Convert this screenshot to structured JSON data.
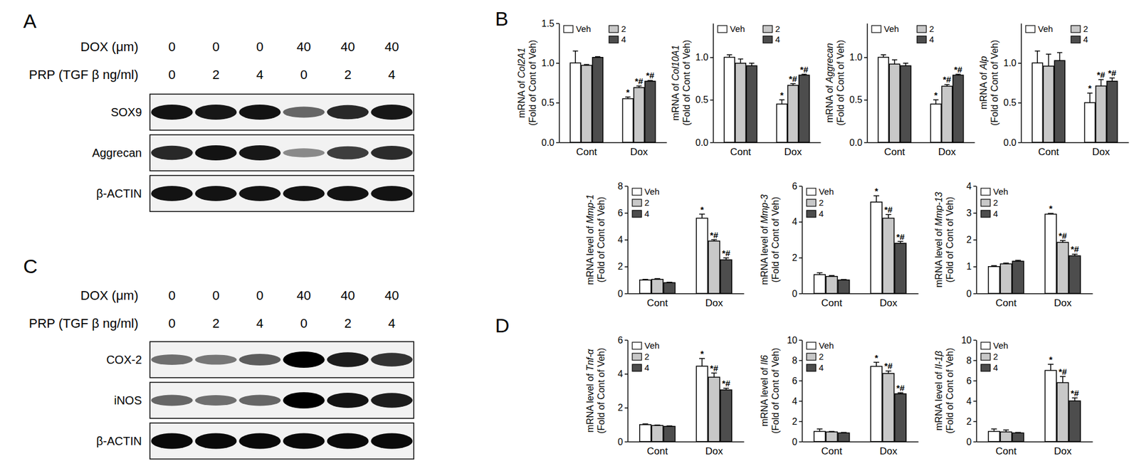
{
  "panel_labels": [
    "A",
    "B",
    "C",
    "D"
  ],
  "blots": [
    {
      "header": [
        {
          "name": "DOX (μm)",
          "values": [
            0,
            0,
            0,
            40,
            40,
            40
          ]
        },
        {
          "name": "PRP (TGF β ng/ml)",
          "values": [
            0,
            2,
            4,
            0,
            2,
            4
          ]
        }
      ],
      "rows": [
        {
          "name": "SOX9",
          "levels": [
            0.9,
            0.88,
            0.9,
            0.5,
            0.8,
            0.88
          ]
        },
        {
          "name": "Aggrecan",
          "levels": [
            0.8,
            0.9,
            0.88,
            0.3,
            0.7,
            0.78
          ]
        },
        {
          "name": "β-ACTIN",
          "levels": [
            0.9,
            0.9,
            0.9,
            0.9,
            0.9,
            0.9
          ]
        }
      ]
    },
    {
      "header": [
        {
          "name": "DOX (μm)",
          "values": [
            0,
            0,
            0,
            40,
            40,
            40
          ]
        },
        {
          "name": "PRP (TGF β ng/ml)",
          "values": [
            0,
            2,
            4,
            0,
            2,
            4
          ]
        }
      ],
      "rows": [
        {
          "name": "COX-2",
          "levels": [
            0.45,
            0.4,
            0.55,
            1.0,
            0.85,
            0.75
          ]
        },
        {
          "name": "iNOS",
          "levels": [
            0.5,
            0.45,
            0.5,
            1.0,
            0.9,
            0.85
          ]
        },
        {
          "name": "β-ACTIN",
          "levels": [
            0.95,
            0.95,
            0.95,
            0.95,
            0.95,
            0.95
          ]
        }
      ]
    }
  ],
  "chart_data": [
    {
      "type": "bar",
      "y_label": [
        "mRNA of Col2A1",
        "(Fold of Cont of Veh)"
      ],
      "categories": [
        "Cont",
        "Dox"
      ],
      "ylim": [
        0,
        1.5
      ],
      "yticks": [
        {
          "value": 0,
          "label": "0.0"
        },
        0.5,
        {
          "value": 1,
          "label": "1.0"
        },
        1.5
      ],
      "legend": "upper left",
      "series": [
        {
          "name": "Veh",
          "color": "#ffffff",
          "values": [
            1.0,
            0.55
          ],
          "errors": [
            0.15,
            0.02
          ],
          "significance": [
            null,
            "*"
          ]
        },
        {
          "name": "2",
          "color": "#c8c8c8",
          "values": [
            0.97,
            0.69
          ],
          "errors": [
            0.01,
            0.02
          ],
          "significance": [
            null,
            "*#"
          ]
        },
        {
          "name": "4",
          "color": "#4d4d4d",
          "values": [
            1.07,
            0.77
          ],
          "errors": [
            0.01,
            0.01
          ],
          "significance": [
            null,
            "*#"
          ]
        }
      ]
    },
    {
      "type": "bar",
      "y_label": [
        "mRNA of Col10A1",
        "(Fold of Cont of Veh)"
      ],
      "categories": [
        "Cont",
        "Dox"
      ],
      "ylim": [
        0,
        1.4
      ],
      "yticks": [
        {
          "value": 0,
          "label": "0.0"
        },
        0.5,
        {
          "value": 1,
          "label": "1.0"
        }
      ],
      "legend": "upper left",
      "series": [
        {
          "name": "Veh",
          "color": "#ffffff",
          "values": [
            1.0,
            0.45
          ],
          "errors": [
            0.03,
            0.05
          ],
          "significance": [
            null,
            "*"
          ]
        },
        {
          "name": "2",
          "color": "#c8c8c8",
          "values": [
            0.93,
            0.67
          ],
          "errors": [
            0.05,
            0.02
          ],
          "significance": [
            null,
            "*#"
          ]
        },
        {
          "name": "4",
          "color": "#4d4d4d",
          "values": [
            0.9,
            0.79
          ],
          "errors": [
            0.03,
            0.01
          ],
          "significance": [
            null,
            "*#"
          ]
        }
      ]
    },
    {
      "type": "bar",
      "y_label": [
        "mRNA of Aggrecan",
        "(Fold of Cont of Veh)"
      ],
      "categories": [
        "Cont",
        "Dox"
      ],
      "ylim": [
        0,
        1.4
      ],
      "yticks": [
        {
          "value": 0,
          "label": "0.0"
        },
        0.5,
        {
          "value": 1,
          "label": "1.0"
        }
      ],
      "legend": "upper left",
      "series": [
        {
          "name": "Veh",
          "color": "#ffffff",
          "values": [
            1.0,
            0.45
          ],
          "errors": [
            0.03,
            0.05
          ],
          "significance": [
            null,
            "*"
          ]
        },
        {
          "name": "2",
          "color": "#c8c8c8",
          "values": [
            0.92,
            0.66
          ],
          "errors": [
            0.05,
            0.02
          ],
          "significance": [
            null,
            "*#"
          ]
        },
        {
          "name": "4",
          "color": "#4d4d4d",
          "values": [
            0.9,
            0.79
          ],
          "errors": [
            0.03,
            0.01
          ],
          "significance": [
            null,
            "*#"
          ]
        }
      ]
    },
    {
      "type": "bar",
      "y_label": [
        "mRNA of Alp",
        "(Fold of Cont of Veh)"
      ],
      "categories": [
        "Cont",
        "Dox"
      ],
      "ylim": [
        0,
        1.5
      ],
      "yticks": [
        {
          "value": 0,
          "label": "0.0"
        },
        0.5,
        {
          "value": 1,
          "label": "1.0"
        }
      ],
      "legend": "upper left",
      "series": [
        {
          "name": "Veh",
          "color": "#ffffff",
          "values": [
            1.0,
            0.5
          ],
          "errors": [
            0.15,
            0.12
          ],
          "significance": [
            null,
            "*"
          ]
        },
        {
          "name": "2",
          "color": "#c8c8c8",
          "values": [
            0.96,
            0.71
          ],
          "errors": [
            0.15,
            0.08
          ],
          "significance": [
            null,
            "*#"
          ]
        },
        {
          "name": "4",
          "color": "#4d4d4d",
          "values": [
            1.03,
            0.77
          ],
          "errors": [
            0.1,
            0.04
          ],
          "significance": [
            null,
            "*#"
          ]
        }
      ]
    },
    {
      "type": "bar",
      "y_label": [
        "mRNA level of Mmp-1",
        "(Fold of Cont of Veh)"
      ],
      "categories": [
        "Cont",
        "Dox"
      ],
      "ylim": [
        0,
        8
      ],
      "yticks": [
        0,
        2,
        4,
        6,
        8
      ],
      "legend": "upper left",
      "series": [
        {
          "name": "Veh",
          "color": "#ffffff",
          "values": [
            1.0,
            5.6
          ],
          "errors": [
            0.05,
            0.3
          ],
          "significance": [
            null,
            "*"
          ]
        },
        {
          "name": "2",
          "color": "#c8c8c8",
          "values": [
            1.05,
            3.9
          ],
          "errors": [
            0.05,
            0.1
          ],
          "significance": [
            null,
            "*#"
          ]
        },
        {
          "name": "4",
          "color": "#4d4d4d",
          "values": [
            0.8,
            2.5
          ],
          "errors": [
            0.03,
            0.15
          ],
          "significance": [
            null,
            "*#"
          ]
        }
      ]
    },
    {
      "type": "bar",
      "y_label": [
        "mRNA level of Mmp-3",
        "(Fold of Cont of Veh)"
      ],
      "categories": [
        "Cont",
        "Dox"
      ],
      "ylim": [
        0,
        6
      ],
      "yticks": [
        0,
        2,
        4,
        6
      ],
      "legend": "upper left",
      "series": [
        {
          "name": "Veh",
          "color": "#ffffff",
          "values": [
            1.05,
            5.1
          ],
          "errors": [
            0.1,
            0.35
          ],
          "significance": [
            null,
            "*"
          ]
        },
        {
          "name": "2",
          "color": "#c8c8c8",
          "values": [
            0.95,
            4.2
          ],
          "errors": [
            0.05,
            0.2
          ],
          "significance": [
            null,
            "*#"
          ]
        },
        {
          "name": "4",
          "color": "#4d4d4d",
          "values": [
            0.75,
            2.8
          ],
          "errors": [
            0.03,
            0.1
          ],
          "significance": [
            null,
            "*#"
          ]
        }
      ]
    },
    {
      "type": "bar",
      "y_label": [
        "mRNA level of Mmp-13",
        "(Fold of Cont of Veh)"
      ],
      "categories": [
        "Cont",
        "Dox"
      ],
      "ylim": [
        0,
        4
      ],
      "yticks": [
        0,
        1,
        2,
        3,
        4
      ],
      "legend": "upper left",
      "series": [
        {
          "name": "Veh",
          "color": "#ffffff",
          "values": [
            1.0,
            2.95
          ],
          "errors": [
            0.03,
            0.03
          ],
          "significance": [
            null,
            "*"
          ]
        },
        {
          "name": "2",
          "color": "#c8c8c8",
          "values": [
            1.1,
            1.9
          ],
          "errors": [
            0.03,
            0.07
          ],
          "significance": [
            null,
            "*#"
          ]
        },
        {
          "name": "4",
          "color": "#4d4d4d",
          "values": [
            1.2,
            1.4
          ],
          "errors": [
            0.03,
            0.06
          ],
          "significance": [
            null,
            "*#"
          ]
        }
      ]
    },
    {
      "type": "bar",
      "y_label": [
        "mRNA level of Tnf-α",
        "(Fold of Cont of Veh)"
      ],
      "categories": [
        "Cont",
        "Dox"
      ],
      "ylim": [
        0,
        6
      ],
      "yticks": [
        0,
        2,
        4,
        6
      ],
      "legend": "upper left",
      "series": [
        {
          "name": "Veh",
          "color": "#ffffff",
          "values": [
            1.0,
            4.45
          ],
          "errors": [
            0.05,
            0.45
          ],
          "significance": [
            null,
            "*"
          ]
        },
        {
          "name": "2",
          "color": "#c8c8c8",
          "values": [
            0.95,
            3.8
          ],
          "errors": [
            0.03,
            0.25
          ],
          "significance": [
            null,
            "*#"
          ]
        },
        {
          "name": "4",
          "color": "#4d4d4d",
          "values": [
            0.9,
            3.05
          ],
          "errors": [
            0.03,
            0.1
          ],
          "significance": [
            null,
            "*#"
          ]
        }
      ]
    },
    {
      "type": "bar",
      "y_label": [
        "mRNA level of Il6",
        "(Fold of Cont of Veh)"
      ],
      "categories": [
        "Cont",
        "Dox"
      ],
      "ylim": [
        0,
        10
      ],
      "yticks": [
        0,
        2,
        4,
        6,
        8,
        10
      ],
      "legend": "upper left",
      "series": [
        {
          "name": "Veh",
          "color": "#ffffff",
          "values": [
            1.0,
            7.4
          ],
          "errors": [
            0.25,
            0.4
          ],
          "significance": [
            null,
            "*"
          ]
        },
        {
          "name": "2",
          "color": "#c8c8c8",
          "values": [
            0.95,
            6.7
          ],
          "errors": [
            0.05,
            0.25
          ],
          "significance": [
            null,
            "*#"
          ]
        },
        {
          "name": "4",
          "color": "#4d4d4d",
          "values": [
            0.85,
            4.7
          ],
          "errors": [
            0.05,
            0.1
          ],
          "significance": [
            null,
            "*#"
          ]
        }
      ]
    },
    {
      "type": "bar",
      "y_label": [
        "mRNA level of Il-1β",
        "(Fold of Cont of Veh)"
      ],
      "categories": [
        "Cont",
        "Dox"
      ],
      "ylim": [
        0,
        10
      ],
      "yticks": [
        0,
        2,
        4,
        6,
        8,
        10
      ],
      "legend": "upper left",
      "series": [
        {
          "name": "Veh",
          "color": "#ffffff",
          "values": [
            1.0,
            7.0
          ],
          "errors": [
            0.25,
            0.6
          ],
          "significance": [
            null,
            "*"
          ]
        },
        {
          "name": "2",
          "color": "#c8c8c8",
          "values": [
            0.95,
            5.8
          ],
          "errors": [
            0.2,
            0.6
          ],
          "significance": [
            null,
            "*#"
          ]
        },
        {
          "name": "4",
          "color": "#4d4d4d",
          "values": [
            0.85,
            4.0
          ],
          "errors": [
            0.05,
            0.3
          ],
          "significance": [
            null,
            "*#"
          ]
        }
      ]
    }
  ]
}
